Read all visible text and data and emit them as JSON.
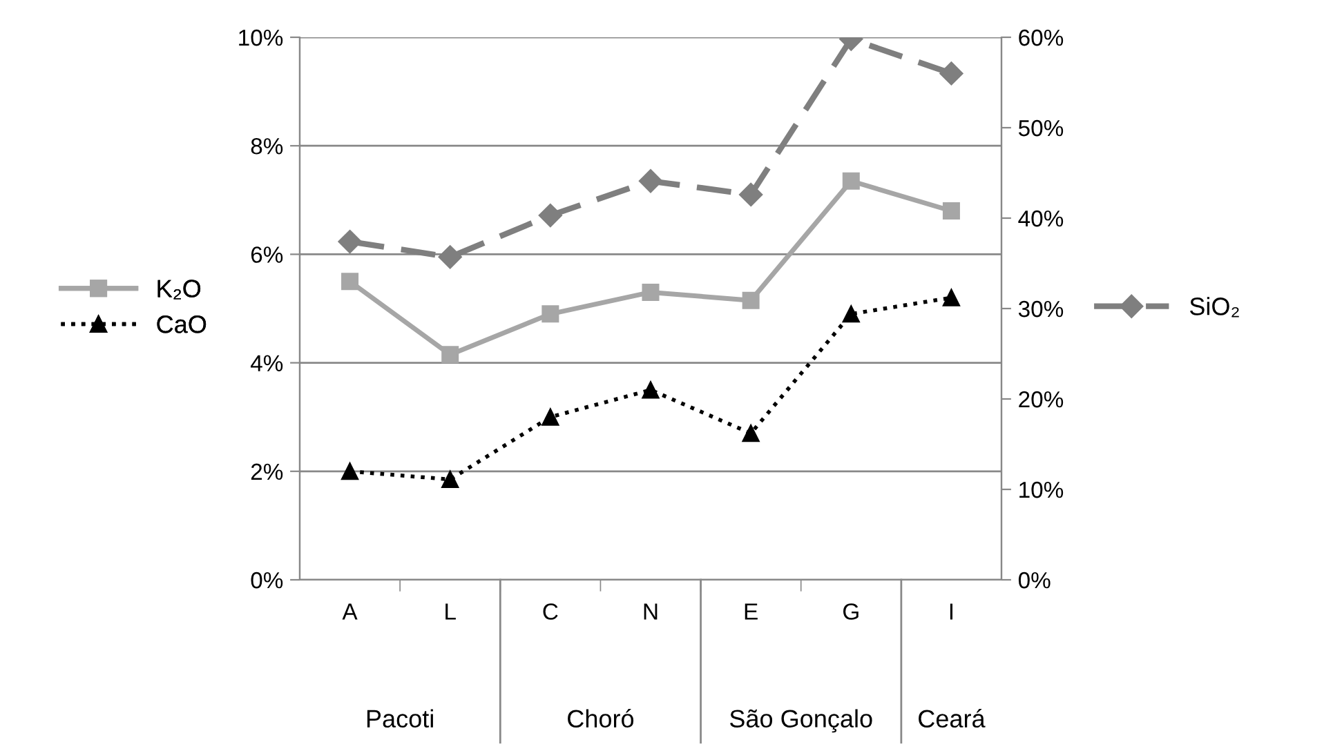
{
  "chart_data": {
    "type": "line",
    "categories": [
      "A",
      "L",
      "C",
      "N",
      "E",
      "G",
      "I"
    ],
    "series": [
      {
        "name": "K₂O",
        "color": "#a6a6a6",
        "marker": "square",
        "line_style": "solid",
        "values": [
          5.5,
          4.15,
          4.9,
          5.3,
          5.15,
          7.35,
          6.8
        ]
      },
      {
        "name": "CaO",
        "color": "#000000",
        "marker": "triangle",
        "line_style": "dotted",
        "values": [
          2.0,
          1.85,
          3.0,
          3.5,
          2.7,
          4.9,
          5.2
        ]
      },
      {
        "name": "SiO₂",
        "color": "#7f7f7f",
        "marker": "diamond",
        "line_style": "dashed",
        "axis": "y2",
        "values": [
          37.4,
          35.7,
          40.3,
          44.1,
          42.6,
          59.8,
          56.0
        ]
      }
    ],
    "ylim": [
      0,
      10
    ],
    "yticks": [
      {
        "value": 0,
        "label": "0%"
      },
      {
        "value": 2,
        "label": "2%"
      },
      {
        "value": 4,
        "label": "4%"
      },
      {
        "value": 6,
        "label": "6%"
      },
      {
        "value": 8,
        "label": "8%"
      },
      {
        "value": 10,
        "label": "10%"
      }
    ],
    "y2lim": [
      0,
      60
    ],
    "y2ticks": [
      {
        "value": 0,
        "label": "0%"
      },
      {
        "value": 10,
        "label": "10%"
      },
      {
        "value": 20,
        "label": "20%"
      },
      {
        "value": 30,
        "label": "30%"
      },
      {
        "value": 40,
        "label": "40%"
      },
      {
        "value": 50,
        "label": "50%"
      },
      {
        "value": 60,
        "label": "60%"
      }
    ],
    "annotations": [
      "Pacoti",
      "Choró",
      "São Gonçalo",
      "Ceará"
    ],
    "grid": "y",
    "legend": "left"
  }
}
